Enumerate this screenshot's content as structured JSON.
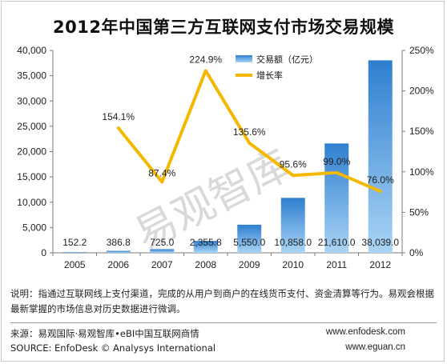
{
  "title": "2012年中国第三方互联网支付市场交易规模",
  "watermark": "易观智库",
  "chart_data": {
    "type": "bar",
    "categories": [
      "2005",
      "2006",
      "2007",
      "2008",
      "2009",
      "2010",
      "2011",
      "2012"
    ],
    "series": [
      {
        "name": "交易额（亿元）",
        "type": "bar",
        "axis": "left",
        "values": [
          152.2,
          386.8,
          725.0,
          2355.8,
          5550.0,
          10858.0,
          21610.0,
          38039.0
        ],
        "labels": [
          "152.2",
          "386.8",
          "725.0",
          "2,355.8",
          "5,550.0",
          "10,858.0",
          "21,610.0",
          "38,039.0"
        ]
      },
      {
        "name": "增长率",
        "type": "line",
        "axis": "right",
        "x": [
          "2006",
          "2007",
          "2008",
          "2009",
          "2010",
          "2011",
          "2012"
        ],
        "values": [
          154.1,
          87.4,
          224.9,
          135.6,
          95.6,
          99.0,
          76.0
        ],
        "labels": [
          "154.1%",
          "87.4%",
          "224.9%",
          "135.6%",
          "95.6%",
          "99.0%",
          "76.0%"
        ]
      }
    ],
    "y_left": {
      "ylim": [
        0,
        40000
      ],
      "ticks": [
        "0",
        "5,000",
        "10,000",
        "15,000",
        "20,000",
        "25,000",
        "30,000",
        "35,000",
        "40,000"
      ]
    },
    "y_right": {
      "ylim": [
        0,
        250
      ],
      "ticks": [
        "0%",
        "50%",
        "100%",
        "150%",
        "200%",
        "250%"
      ]
    },
    "legend_position": "top-right",
    "colors": {
      "bar_top": "#2f7fd0",
      "bar_bottom": "#a9d4f5",
      "line": "#f5b800"
    }
  },
  "note": "说明：指通过互联网线上支付渠道，完成的从用户到商户的在线货币支付、资金清算等行为。易观会根据最新掌握的市场信息对历史数据进行微调。",
  "source": {
    "left_line1": "来源：易观国际·易观智库•eBI中国互联网商情",
    "left_line2": "SOURCE:  EnfoDesk © Analysys International",
    "right_line1": "www.enfodesk.com",
    "right_line2": "www.eguan.cn"
  }
}
